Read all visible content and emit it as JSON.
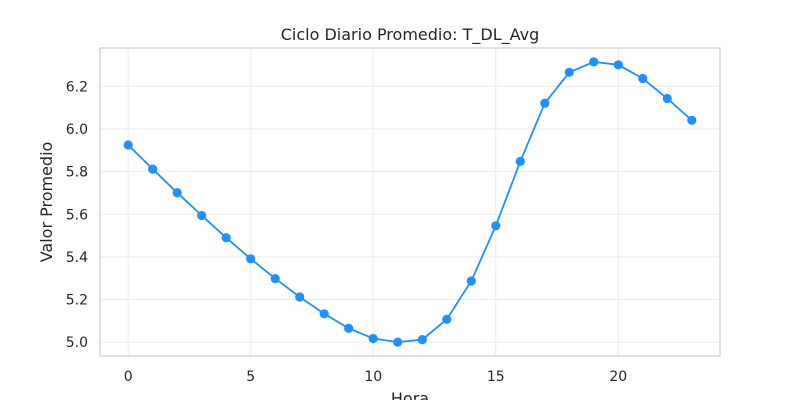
{
  "chart_data": {
    "type": "line",
    "title": "Ciclo Diario Promedio: T_DL_Avg",
    "xlabel": "Hora",
    "ylabel": "Valor Promedio",
    "x": [
      0,
      1,
      2,
      3,
      4,
      5,
      6,
      7,
      8,
      9,
      10,
      11,
      12,
      13,
      14,
      15,
      16,
      17,
      18,
      19,
      20,
      21,
      22,
      23
    ],
    "series": [
      {
        "values": [
          5.925,
          5.812,
          5.701,
          5.594,
          5.49,
          5.391,
          5.298,
          5.212,
          5.133,
          5.065,
          5.017,
          5.0,
          5.012,
          5.107,
          5.287,
          5.546,
          5.848,
          6.121,
          6.266,
          6.315,
          6.301,
          6.237,
          6.143,
          6.041
        ]
      }
    ],
    "xticks": [
      0,
      5,
      10,
      15,
      20
    ],
    "yticks": [
      5.0,
      5.2,
      5.4,
      5.6,
      5.8,
      6.0,
      6.2
    ],
    "xlim": [
      -1.15,
      24.15
    ],
    "ylim": [
      4.935,
      6.38
    ],
    "grid": true,
    "colors": {
      "line": "#1e90ff",
      "grid": "#ebebeb",
      "frame": "#cccccc"
    }
  }
}
